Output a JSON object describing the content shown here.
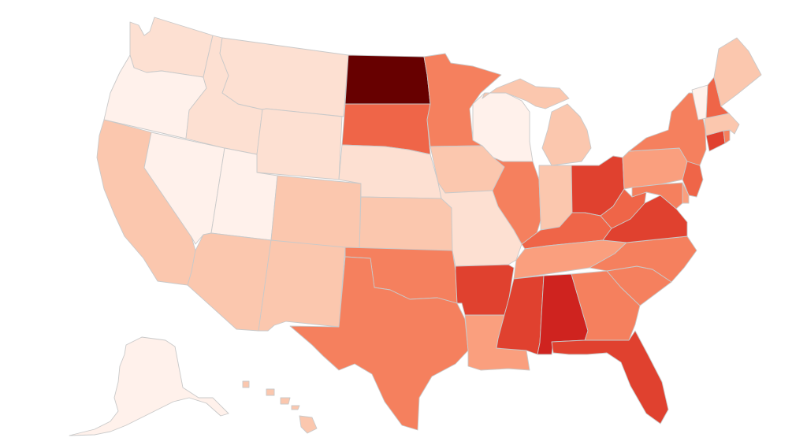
{
  "map": {
    "type": "us-choropleth",
    "color_scale": [
      "#fff1eb",
      "#fde0d2",
      "#fbc7ae",
      "#fa9f7e",
      "#f5805e",
      "#ef6548",
      "#e0412f",
      "#cf231f",
      "#670000"
    ],
    "stroke_color": "#c9c9c9",
    "states": [
      {
        "id": "WA",
        "level": 1
      },
      {
        "id": "OR",
        "level": 0
      },
      {
        "id": "CA",
        "level": 2
      },
      {
        "id": "NV",
        "level": 0
      },
      {
        "id": "ID",
        "level": 1
      },
      {
        "id": "MT",
        "level": 1
      },
      {
        "id": "WY",
        "level": 1
      },
      {
        "id": "UT",
        "level": 0
      },
      {
        "id": "AZ",
        "level": 2
      },
      {
        "id": "CO",
        "level": 2
      },
      {
        "id": "NM",
        "level": 2
      },
      {
        "id": "ND",
        "level": 8
      },
      {
        "id": "SD",
        "level": 5
      },
      {
        "id": "NE",
        "level": 1
      },
      {
        "id": "KS",
        "level": 2
      },
      {
        "id": "OK",
        "level": 4
      },
      {
        "id": "TX",
        "level": 4
      },
      {
        "id": "MN",
        "level": 4
      },
      {
        "id": "IA",
        "level": 2
      },
      {
        "id": "MO",
        "level": 1
      },
      {
        "id": "AR",
        "level": 6
      },
      {
        "id": "LA",
        "level": 3
      },
      {
        "id": "WI",
        "level": 0
      },
      {
        "id": "IL",
        "level": 4
      },
      {
        "id": "MI",
        "level": 2
      },
      {
        "id": "IN",
        "level": 2
      },
      {
        "id": "OH",
        "level": 6
      },
      {
        "id": "KY",
        "level": 5
      },
      {
        "id": "TN",
        "level": 3
      },
      {
        "id": "MS",
        "level": 6
      },
      {
        "id": "AL",
        "level": 7
      },
      {
        "id": "GA",
        "level": 4
      },
      {
        "id": "FL",
        "level": 6
      },
      {
        "id": "SC",
        "level": 4
      },
      {
        "id": "NC",
        "level": 4
      },
      {
        "id": "VA",
        "level": 6
      },
      {
        "id": "WV",
        "level": 5
      },
      {
        "id": "PA",
        "level": 3
      },
      {
        "id": "NY",
        "level": 4
      },
      {
        "id": "VT",
        "level": 0
      },
      {
        "id": "NH",
        "level": 5
      },
      {
        "id": "ME",
        "level": 2
      },
      {
        "id": "MA",
        "level": 2
      },
      {
        "id": "CT",
        "level": 6
      },
      {
        "id": "RI",
        "level": 4
      },
      {
        "id": "NJ",
        "level": 5
      },
      {
        "id": "DE",
        "level": 3
      },
      {
        "id": "MD",
        "level": 4
      },
      {
        "id": "AK",
        "level": 0
      },
      {
        "id": "HI",
        "level": 2
      }
    ]
  }
}
